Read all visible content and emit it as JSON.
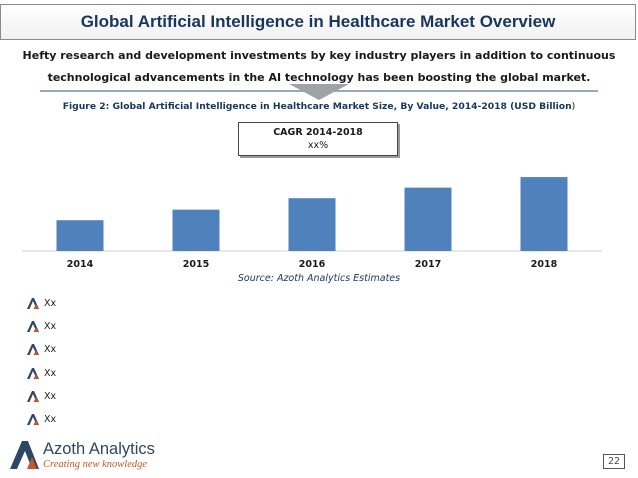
{
  "slide": {
    "title": "Global Artificial Intelligence in Healthcare Market Overview",
    "subtitle_line1": "Hefty research and development investments by key industry players in addition to continuous",
    "subtitle_line2": "technological advancements in the AI technology has been boosting the global market.",
    "figure_caption": "Figure 2: Global Artificial Intelligence in Healthcare Market Size, By Value, 2014-2018 (USD Billion",
    "figure_caption_close": ")",
    "cagr_label": "CAGR 2014-2018",
    "cagr_value": "xx%",
    "source": "Source: Azoth Analytics Estimates",
    "bullets": [
      "Xx",
      "Xx",
      "Xx",
      "Xx",
      "Xx",
      "Xx"
    ],
    "logo_name": "Azoth Analytics",
    "logo_tagline": "Creating new knowledge",
    "page_number": "22"
  },
  "colors": {
    "bar": "#4f81bd",
    "title": "#17375e",
    "accent_orange": "#c9562a"
  },
  "chart_data": {
    "type": "bar",
    "categories": [
      "2014",
      "2015",
      "2016",
      "2017",
      "2018"
    ],
    "values": [
      35,
      47,
      60,
      72,
      84
    ],
    "title": "",
    "xlabel": "",
    "ylabel": "",
    "ylim": [
      0,
      100
    ],
    "grid": false,
    "legend": "none"
  }
}
